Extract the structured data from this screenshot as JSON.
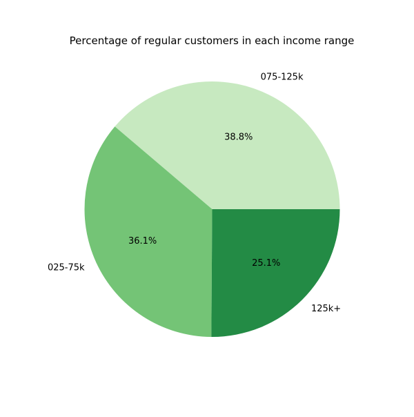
{
  "chart_data": {
    "type": "pie",
    "title": "Percentage of regular customers in each income range",
    "start_angle_deg": 0,
    "direction": "counterclockwise",
    "slices": [
      {
        "label": "075-125k",
        "value": 38.8,
        "pct_label": "38.8%",
        "color": "#c7e9c0"
      },
      {
        "label": "025-75k",
        "value": 36.1,
        "pct_label": "36.1%",
        "color": "#74c476"
      },
      {
        "label": "125k+",
        "value": 25.1,
        "pct_label": "25.1%",
        "color": "#238b45"
      }
    ]
  }
}
